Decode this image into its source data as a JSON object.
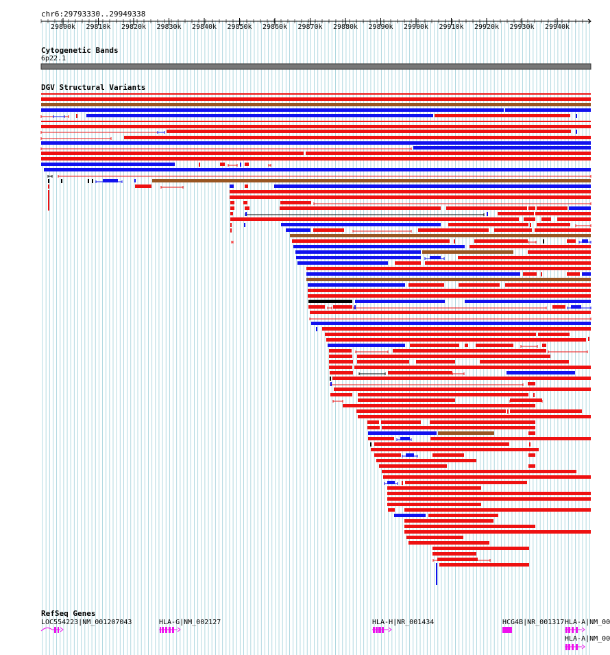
{
  "locus": "chr6:29793330..29949338",
  "ruler": {
    "ticks": [
      "29800k",
      "29810k",
      "29820k",
      "29830k",
      "29840k",
      "29850k",
      "29860k",
      "29870k",
      "29880k",
      "29890k",
      "29900k",
      "29910k",
      "29920k",
      "29930k",
      "29940k"
    ]
  },
  "cyto": {
    "title": "Cytogenetic Bands",
    "band": "6p22.1"
  },
  "dgv": {
    "title": "DGV Structural Variants"
  },
  "genes": {
    "title": "RefSeq Genes",
    "items": [
      {
        "label": "LOC554223|NM_001207043"
      },
      {
        "label": "HLA-G|NM_002127"
      },
      {
        "label": "HLA-H|NR_001434"
      },
      {
        "label": "HCG4B|NR_001317"
      },
      {
        "label": "HLA-A|NM_00"
      },
      {
        "label": "HLA-A|NM_00"
      }
    ]
  },
  "colors": {
    "loss": "#ee1111",
    "gain": "#1111ee",
    "both": "#995522",
    "complex": "#000000",
    "gene": "#ee11ee",
    "grid": "#a8d4dd"
  }
}
